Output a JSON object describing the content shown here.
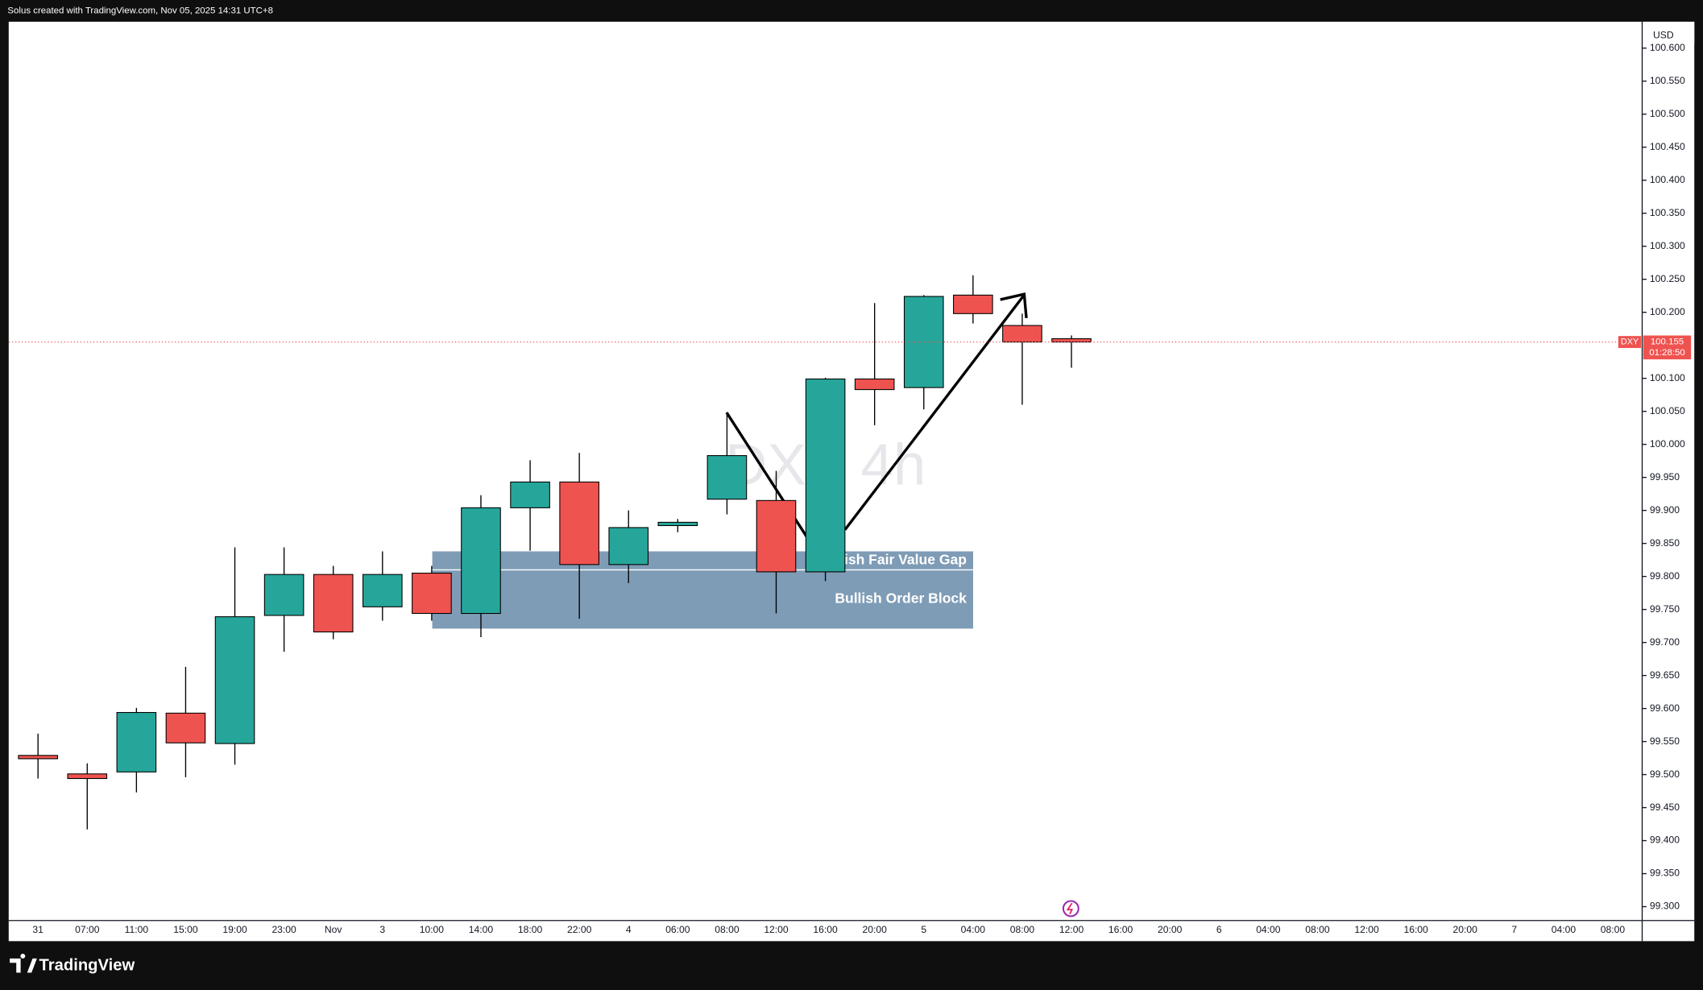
{
  "header": {
    "title": "Solus created with TradingView.com, Nov 05, 2025 14:31 UTC+8"
  },
  "chart_data": {
    "type": "candlestick",
    "watermark": "DXY 4h",
    "currency": "USD",
    "categories": [
      "31",
      "07:00",
      "11:00",
      "15:00",
      "19:00",
      "23:00",
      "Nov",
      "3",
      "10:00",
      "14:00",
      "18:00",
      "22:00",
      "4",
      "06:00",
      "08:00",
      "12:00",
      "16:00",
      "20:00",
      "5",
      "04:00",
      "08:00",
      "12:00",
      "16:00",
      "20:00",
      "6",
      "04:00",
      "08:00",
      "12:00",
      "16:00",
      "20:00",
      "7",
      "04:00",
      "08:00"
    ],
    "series": [
      {
        "name": "DXY",
        "up_color": "#26a69a",
        "down_color": "#ef5350",
        "open": [
          99.529,
          99.501,
          99.504,
          99.593,
          99.547,
          99.741,
          99.803,
          99.754,
          99.805,
          99.744,
          99.904,
          99.943,
          99.818,
          99.877,
          99.917,
          99.915,
          99.807,
          100.099,
          100.086,
          100.226,
          100.18,
          100.16,
          null,
          null,
          null,
          null,
          null,
          null,
          null,
          null,
          null,
          null,
          null
        ],
        "high": [
          99.562,
          99.517,
          99.601,
          99.663,
          99.844,
          99.844,
          99.816,
          99.838,
          99.816,
          99.923,
          99.976,
          99.987,
          99.9,
          99.887,
          100.048,
          99.96,
          100.101,
          100.214,
          100.226,
          100.256,
          100.198,
          100.165,
          null,
          null,
          null,
          null,
          null,
          null,
          null,
          null,
          null,
          null,
          null
        ],
        "low": [
          99.494,
          99.417,
          99.473,
          99.496,
          99.515,
          99.686,
          99.705,
          99.733,
          99.733,
          99.708,
          99.839,
          99.736,
          99.79,
          99.867,
          99.894,
          99.744,
          99.793,
          100.029,
          100.053,
          100.183,
          100.06,
          100.116,
          null,
          null,
          null,
          null,
          null,
          null,
          null,
          null,
          null,
          null,
          null
        ],
        "close": [
          99.524,
          99.494,
          99.594,
          99.548,
          99.739,
          99.803,
          99.716,
          99.803,
          99.744,
          99.904,
          99.943,
          99.818,
          99.874,
          99.882,
          99.983,
          99.807,
          100.099,
          100.083,
          100.224,
          100.198,
          100.155,
          100.155,
          null,
          null,
          null,
          null,
          null,
          null,
          null,
          null,
          null,
          null,
          null
        ]
      }
    ],
    "last_price": 100.155,
    "countdown": "01:28:50",
    "ylim": [
      99.279,
      100.64
    ],
    "yticks": [
      {
        "value": 100.6,
        "label": "100.600"
      },
      {
        "value": 100.55,
        "label": "100.550"
      },
      {
        "value": 100.5,
        "label": "100.500"
      },
      {
        "value": 100.45,
        "label": "100.450"
      },
      {
        "value": 100.4,
        "label": "100.400"
      },
      {
        "value": 100.35,
        "label": "100.350"
      },
      {
        "value": 100.3,
        "label": "100.300"
      },
      {
        "value": 100.25,
        "label": "100.250"
      },
      {
        "value": 100.2,
        "label": "100.200"
      },
      {
        "value": 100.1,
        "label": "100.100"
      },
      {
        "value": 100.05,
        "label": "100.050"
      },
      {
        "value": 100,
        "label": "100.000"
      },
      {
        "value": 99.95,
        "label": "99.950"
      },
      {
        "value": 99.9,
        "label": "99.900"
      },
      {
        "value": 99.85,
        "label": "99.850"
      },
      {
        "value": 99.8,
        "label": "99.800"
      },
      {
        "value": 99.75,
        "label": "99.750"
      },
      {
        "value": 99.7,
        "label": "99.700"
      },
      {
        "value": 99.65,
        "label": "99.650"
      },
      {
        "value": 99.6,
        "label": "99.600"
      },
      {
        "value": 99.55,
        "label": "99.550"
      },
      {
        "value": 99.5,
        "label": "99.500"
      },
      {
        "value": 99.45,
        "label": "99.450"
      },
      {
        "value": 99.4,
        "label": "99.400"
      },
      {
        "value": 99.35,
        "label": "99.350"
      },
      {
        "value": 99.3,
        "label": "99.300"
      }
    ],
    "grid": false,
    "zones": [
      {
        "label": "Bullish Fair Value Gap",
        "top": 99.838,
        "bottom": 99.81,
        "color": "#7f9cb6"
      },
      {
        "label": "Bullish Order Block",
        "top": 99.81,
        "bottom": 99.721,
        "color": "#7f9cb6"
      }
    ]
  },
  "footer": {
    "brand": "TradingView"
  }
}
